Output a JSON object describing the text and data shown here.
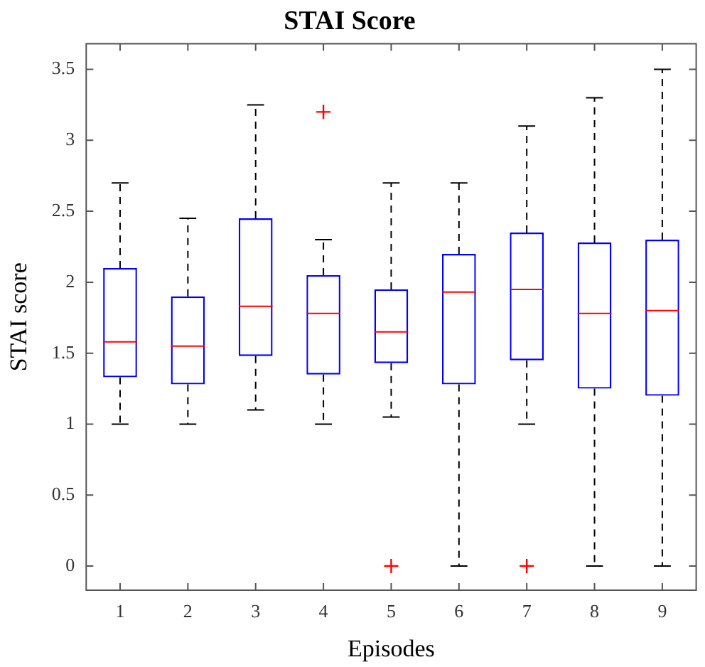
{
  "chart_data": {
    "type": "box",
    "title": "STAI Score",
    "xlabel": "Episodes",
    "ylabel": "STAI score",
    "categories": [
      "1",
      "2",
      "3",
      "4",
      "5",
      "6",
      "7",
      "8",
      "9"
    ],
    "ylim": [
      -0.17,
      3.68
    ],
    "yticks": [
      0,
      0.5,
      1,
      1.5,
      2,
      2.5,
      3,
      3.5
    ],
    "grid": false,
    "legend": false,
    "series": [
      {
        "color": "#0000ff",
        "boxes": [
          {
            "low": 1.0,
            "q1": 1.33,
            "median": 1.58,
            "q3": 2.1,
            "high": 2.7
          },
          {
            "low": 1.0,
            "q1": 1.28,
            "median": 1.55,
            "q3": 1.9,
            "high": 2.45
          },
          {
            "low": 1.1,
            "q1": 1.48,
            "median": 1.83,
            "q3": 2.45,
            "high": 3.25
          },
          {
            "low": 1.0,
            "q1": 1.35,
            "median": 1.78,
            "q3": 2.05,
            "high": 2.3,
            "outliers": [
              3.2
            ]
          },
          {
            "low": 1.05,
            "q1": 1.43,
            "median": 1.65,
            "q3": 1.95,
            "high": 2.7,
            "outliers": [
              0
            ]
          },
          {
            "low": 0,
            "q1": 1.28,
            "median": 1.93,
            "q3": 2.2,
            "high": 2.7
          },
          {
            "low": 1.0,
            "q1": 1.45,
            "median": 1.95,
            "q3": 2.35,
            "high": 3.1,
            "outliers": [
              0
            ]
          },
          {
            "low": 0,
            "q1": 1.25,
            "median": 1.78,
            "q3": 2.28,
            "high": 3.3
          },
          {
            "low": 0,
            "q1": 1.2,
            "median": 1.8,
            "q3": 2.3,
            "high": 3.5
          }
        ]
      }
    ]
  }
}
